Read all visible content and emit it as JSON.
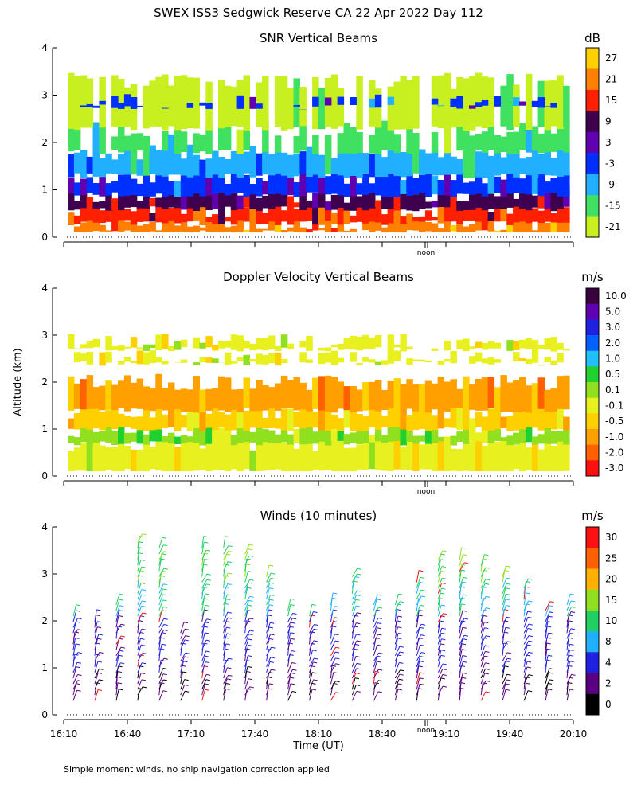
{
  "figure": {
    "title": "SWEX ISS3 Sedgwick Reserve CA  22 Apr 2022 Day 112",
    "ylabel": "Altitude (km)",
    "xlabel": "Time (UT)",
    "noon_label": "noon",
    "footnote": "Simple moment winds, no ship navigation correction applied"
  },
  "chart_data": [
    {
      "type": "heatmap",
      "title": "SNR Vertical Beams",
      "colorbar_unit": "dB",
      "ylim": [
        0,
        4
      ],
      "yticks": [
        "0",
        "1",
        "2",
        "3",
        "4"
      ],
      "x_time_range": [
        "16:10",
        "20:10"
      ],
      "colorbar": {
        "labels": [
          "27",
          "21",
          "15",
          "9",
          "3",
          "-3",
          "-9",
          "-15",
          "-21"
        ],
        "colors": [
          "#ffd000",
          "#ff8000",
          "#ff2000",
          "#400050",
          "#6000b0",
          "#0030ff",
          "#20b0ff",
          "#40e060",
          "#c8f020"
        ]
      },
      "layers": [
        {
          "alt_range": [
            0.1,
            0.3
          ],
          "value": 21
        },
        {
          "alt_range": [
            0.3,
            0.6
          ],
          "value": 15
        },
        {
          "alt_range": [
            0.6,
            0.9
          ],
          "value": 6
        },
        {
          "alt_range": [
            0.9,
            1.3
          ],
          "value": -3
        },
        {
          "alt_range": [
            1.3,
            1.8
          ],
          "value": -9
        },
        {
          "alt_range": [
            1.8,
            2.3
          ],
          "value": -15
        },
        {
          "alt_range": [
            2.3,
            3.3
          ],
          "value": -21
        },
        {
          "alt_range": [
            2.75,
            2.85
          ],
          "value": -3
        }
      ]
    },
    {
      "type": "heatmap",
      "title": "Doppler Velocity Vertical Beams",
      "colorbar_unit": "m/s",
      "ylim": [
        0,
        4
      ],
      "yticks": [
        "0",
        "1",
        "2",
        "3",
        "4"
      ],
      "x_time_range": [
        "16:10",
        "20:10"
      ],
      "colorbar": {
        "labels": [
          "10.0",
          "5.0",
          "3.0",
          "2.0",
          "1.0",
          "0.5",
          "0.1",
          "-0.1",
          "-0.5",
          "-1.0",
          "-2.0",
          "-3.0"
        ],
        "colors": [
          "#3a0040",
          "#6000b0",
          "#2020e0",
          "#0060ff",
          "#20c0ff",
          "#20d030",
          "#90e020",
          "#e8f020",
          "#ffd000",
          "#ffa000",
          "#ff6000",
          "#ff1010"
        ]
      },
      "layers": [
        {
          "alt_range": [
            0.1,
            0.7
          ],
          "value": -0.1
        },
        {
          "alt_range": [
            0.7,
            1.0
          ],
          "value": 0.1
        },
        {
          "alt_range": [
            1.0,
            1.4
          ],
          "value": -0.5
        },
        {
          "alt_range": [
            1.4,
            2.0
          ],
          "value": -1.0
        },
        {
          "alt_range": [
            2.4,
            2.5
          ],
          "value": -0.1
        },
        {
          "alt_range": [
            2.7,
            2.85
          ],
          "value": -0.1
        }
      ]
    },
    {
      "type": "wind_barbs",
      "title": "Winds (10 minutes)",
      "colorbar_unit": "m/s",
      "ylim": [
        0,
        4
      ],
      "yticks": [
        "0",
        "1",
        "2",
        "3",
        "4"
      ],
      "xticks": [
        "16:10",
        "16:40",
        "17:10",
        "17:40",
        "18:10",
        "18:40",
        "19:10",
        "19:40",
        "20:10"
      ],
      "colorbar": {
        "labels": [
          "30",
          "25",
          "20",
          "15",
          "10",
          "8",
          "4",
          "2",
          "0"
        ],
        "colors": [
          "#ff1010",
          "#ff6000",
          "#ffb000",
          "#90e020",
          "#20d060",
          "#20b0ff",
          "#2020e0",
          "#5a0080",
          "#000000"
        ]
      },
      "profiles_top_km": [
        2.2,
        2.1,
        2.4,
        3.7,
        3.6,
        1.8,
        3.6,
        3.6,
        3.5,
        3.0,
        2.3,
        2.2,
        2.4,
        3.0,
        2.4,
        2.4,
        2.9,
        3.4,
        3.4,
        3.2,
        3.0,
        2.8,
        2.3,
        2.4
      ]
    }
  ]
}
